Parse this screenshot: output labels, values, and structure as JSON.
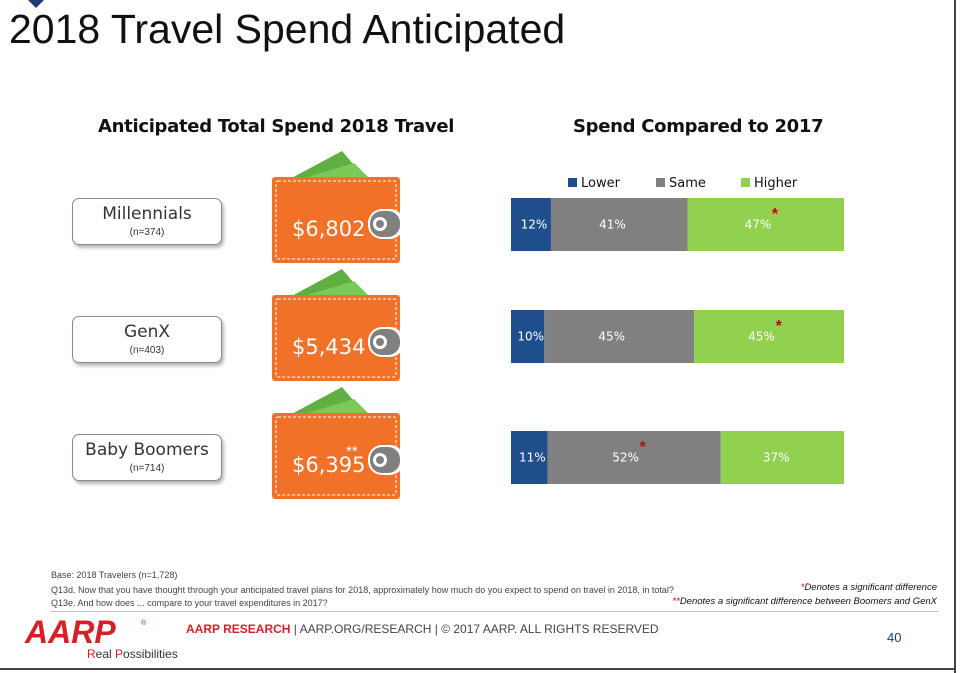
{
  "page": {
    "title": "2018 Travel Spend Anticipated",
    "page_number": "40"
  },
  "left_section": {
    "title": "Anticipated Total Spend 2018 Travel"
  },
  "right_section": {
    "title": "Spend Compared to 2017"
  },
  "segments": [
    {
      "name": "Millennials",
      "n": "(n=374)",
      "spend": "$6,802",
      "spend_mark": ""
    },
    {
      "name": "GenX",
      "n": "(n=403)",
      "spend": "$5,434",
      "spend_mark": ""
    },
    {
      "name": "Baby Boomers",
      "n": "(n=714)",
      "spend": "$6,395",
      "spend_mark": "**"
    }
  ],
  "chart_data": {
    "type": "bar",
    "orientation": "horizontal",
    "stacked": true,
    "categories": [
      "Millennials",
      "GenX",
      "Baby Boomers"
    ],
    "series": [
      {
        "name": "Lower",
        "color": "#1f4e8c",
        "values": [
          12,
          10,
          11
        ],
        "labels": [
          "12%",
          "10%",
          "11%"
        ],
        "significant": [
          false,
          false,
          false
        ]
      },
      {
        "name": "Same",
        "color": "#808080",
        "values": [
          41,
          45,
          52
        ],
        "labels": [
          "41%",
          "45%",
          "52%"
        ],
        "significant": [
          false,
          false,
          true
        ]
      },
      {
        "name": "Higher",
        "color": "#92d050",
        "values": [
          47,
          45,
          37
        ],
        "labels": [
          "47%",
          "45%",
          "37%"
        ],
        "significant": [
          true,
          true,
          false
        ]
      }
    ],
    "xlim": [
      0,
      100
    ],
    "legend_position": "top",
    "grid": false
  },
  "footnotes": {
    "base": "Base:  2018 Travelers (n=1,728)",
    "q13d": "Q13d. Now that you have thought through your anticipated travel plans for 2018, approximately how much do you expect to spend on travel in 2018, in total?",
    "q13e": "Q13e. And how does ... compare to your travel expenditures in 2017?",
    "sig_mark": "*",
    "sig_text": "Denotes a significant difference",
    "sig2_mark": "**",
    "sig2_text": "Denotes a significant difference between Boomers and GenX"
  },
  "footer": {
    "logo_text": "AARP",
    "tagline_r": "R",
    "tagline_eal": "eal ",
    "tagline_p": "P",
    "tagline_ossibilities": "ossibilities",
    "research_label": "AARP RESEARCH",
    "rest": " | AARP.ORG/RESEARCH | © 2017 AARP. ALL RIGHTS RESERVED"
  },
  "colors": {
    "wallet_orange": "#f07127",
    "bill_green": "#6dbf4b",
    "aarp_red": "#d62028",
    "star_red": "#c00000"
  }
}
